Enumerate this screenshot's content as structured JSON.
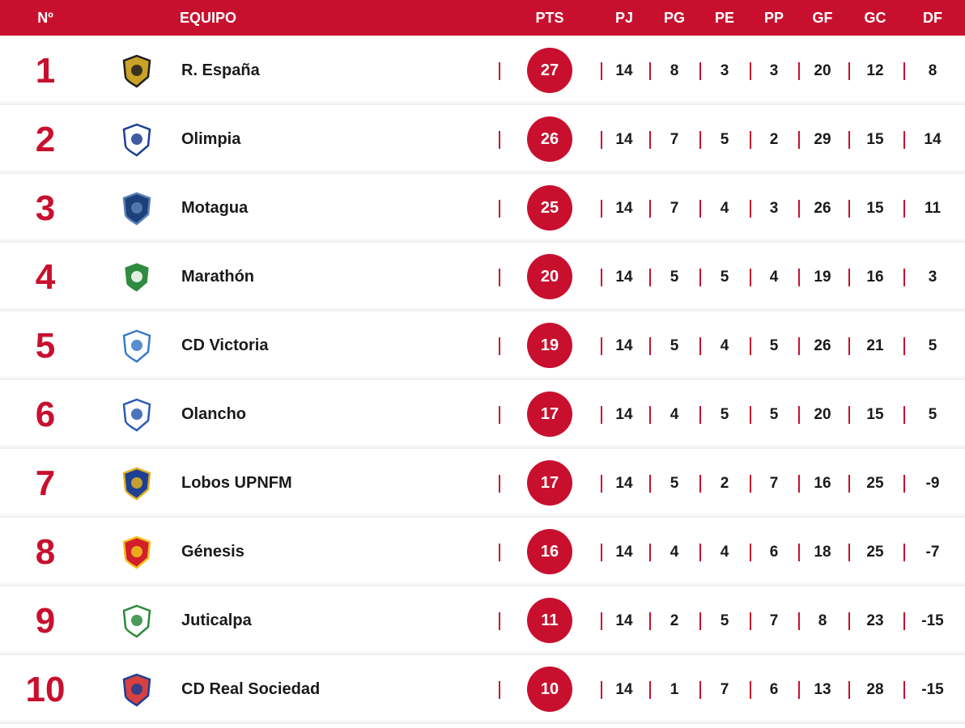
{
  "header": {
    "pos": "Nº",
    "team": "EQUIPO",
    "pts": "PTS",
    "pj": "PJ",
    "pg": "PG",
    "pe": "PE",
    "pp": "PP",
    "gf": "GF",
    "gc": "GC",
    "df": "DF"
  },
  "colors": {
    "accent": "#c8102e",
    "text": "#1a1a1a"
  },
  "rows": [
    {
      "pos": "1",
      "team": "R. España",
      "crest": "real-espana-crest-icon",
      "pts": "27",
      "pj": "14",
      "pg": "8",
      "pe": "3",
      "pp": "3",
      "gf": "20",
      "gc": "12",
      "df": "8"
    },
    {
      "pos": "2",
      "team": "Olimpia",
      "crest": "olimpia-crest-icon",
      "pts": "26",
      "pj": "14",
      "pg": "7",
      "pe": "5",
      "pp": "2",
      "gf": "29",
      "gc": "15",
      "df": "14"
    },
    {
      "pos": "3",
      "team": "Motagua",
      "crest": "motagua-crest-icon",
      "pts": "25",
      "pj": "14",
      "pg": "7",
      "pe": "4",
      "pp": "3",
      "gf": "26",
      "gc": "15",
      "df": "11"
    },
    {
      "pos": "4",
      "team": "Marathón",
      "crest": "marathon-crest-icon",
      "pts": "20",
      "pj": "14",
      "pg": "5",
      "pe": "5",
      "pp": "4",
      "gf": "19",
      "gc": "16",
      "df": "3"
    },
    {
      "pos": "5",
      "team": "CD Victoria",
      "crest": "victoria-crest-icon",
      "pts": "19",
      "pj": "14",
      "pg": "5",
      "pe": "4",
      "pp": "5",
      "gf": "26",
      "gc": "21",
      "df": "5"
    },
    {
      "pos": "6",
      "team": "Olancho",
      "crest": "olancho-crest-icon",
      "pts": "17",
      "pj": "14",
      "pg": "4",
      "pe": "5",
      "pp": "5",
      "gf": "20",
      "gc": "15",
      "df": "5"
    },
    {
      "pos": "7",
      "team": "Lobos UPNFM",
      "crest": "lobos-upnfm-crest-icon",
      "pts": "17",
      "pj": "14",
      "pg": "5",
      "pe": "2",
      "pp": "7",
      "gf": "16",
      "gc": "25",
      "df": "-9"
    },
    {
      "pos": "8",
      "team": "Génesis",
      "crest": "genesis-crest-icon",
      "pts": "16",
      "pj": "14",
      "pg": "4",
      "pe": "4",
      "pp": "6",
      "gf": "18",
      "gc": "25",
      "df": "-7"
    },
    {
      "pos": "9",
      "team": "Juticalpa",
      "crest": "juticalpa-crest-icon",
      "pts": "11",
      "pj": "14",
      "pg": "2",
      "pe": "5",
      "pp": "7",
      "gf": "8",
      "gc": "23",
      "df": "-15"
    },
    {
      "pos": "10",
      "team": "CD Real Sociedad",
      "crest": "real-sociedad-crest-icon",
      "pts": "10",
      "pj": "14",
      "pg": "1",
      "pe": "7",
      "pp": "6",
      "gf": "13",
      "gc": "28",
      "df": "-15"
    }
  ]
}
